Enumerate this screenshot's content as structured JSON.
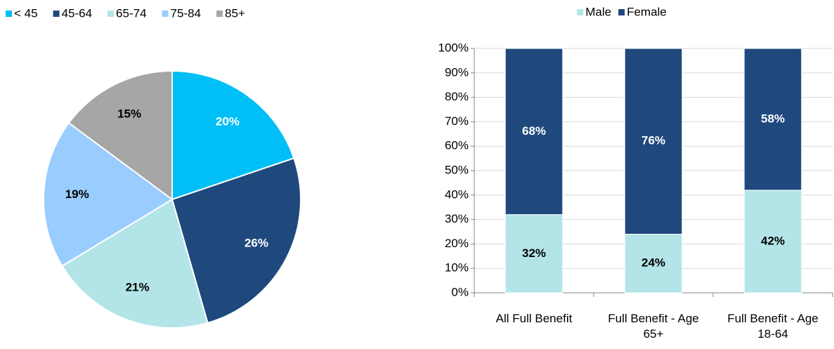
{
  "chart_data": [
    {
      "type": "pie",
      "categories": [
        "< 45",
        "45-64",
        "65-74",
        "75-84",
        "85+"
      ],
      "values": [
        20,
        26,
        21,
        19,
        15
      ],
      "value_labels": [
        "20%",
        "26%",
        "21%",
        "19%",
        "15%"
      ],
      "colors": [
        "#00bff6",
        "#1f497d",
        "#b3e5e8",
        "#99ccff",
        "#a6a6a6"
      ],
      "label_colors": [
        "#ffffff",
        "#ffffff",
        "#000000",
        "#000000",
        "#000000"
      ],
      "legend": "top-left"
    },
    {
      "type": "stacked_bar",
      "categories": [
        "All Full Benefit",
        "Full Benefit - Age 65+",
        "Full Benefit - Age 18-64"
      ],
      "series": [
        {
          "name": "Male",
          "color": "#b3e5e8",
          "label_color": "#000000",
          "values": [
            32,
            24,
            42
          ],
          "value_labels": [
            "32%",
            "24%",
            "42%"
          ]
        },
        {
          "name": "Female",
          "color": "#1f497d",
          "label_color": "#ffffff",
          "values": [
            68,
            76,
            58
          ],
          "value_labels": [
            "68%",
            "76%",
            "58%"
          ]
        }
      ],
      "ylim": [
        0,
        100
      ],
      "yticks": [
        {
          "value": 0,
          "label": "0%"
        },
        {
          "value": 10,
          "label": "10%"
        },
        {
          "value": 20,
          "label": "20%"
        },
        {
          "value": 30,
          "label": "30%"
        },
        {
          "value": 40,
          "label": "40%"
        },
        {
          "value": 50,
          "label": "50%"
        },
        {
          "value": 60,
          "label": "60%"
        },
        {
          "value": 70,
          "label": "70%"
        },
        {
          "value": 80,
          "label": "80%"
        },
        {
          "value": 90,
          "label": "90%"
        },
        {
          "value": 100,
          "label": "100%"
        }
      ],
      "grid": true,
      "legend": "top-center"
    }
  ]
}
